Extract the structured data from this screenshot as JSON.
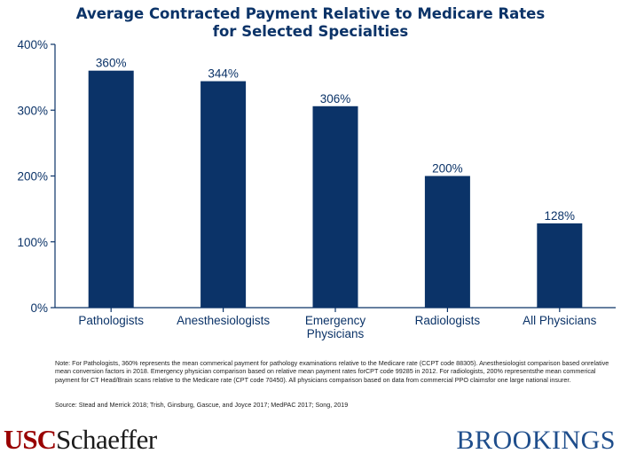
{
  "chart_data": {
    "type": "bar",
    "title_lines": [
      "Average Contracted Payment Relative to Medicare Rates",
      "for Selected Specialties"
    ],
    "categories": [
      [
        "Pathologists"
      ],
      [
        "Anesthesiologists"
      ],
      [
        "Emergency",
        "Physicians"
      ],
      [
        "Radiologists"
      ],
      [
        "All Physicians"
      ]
    ],
    "values": [
      360,
      344,
      306,
      200,
      128
    ],
    "data_labels": [
      "360%",
      "344%",
      "306%",
      "200%",
      "128%"
    ],
    "yticks": [
      0,
      100,
      200,
      300,
      400
    ],
    "ytick_labels": [
      "0%",
      "100%",
      "200%",
      "300%",
      "400%"
    ],
    "ylim": [
      0,
      400
    ],
    "bar_color": "#0b3368",
    "axis_color": "#0b3368",
    "grid": false,
    "legend": "none"
  },
  "footer": {
    "note": "Note: For Pathologists, 360% represents the mean commerical payment for pathology examinations relative to the Medicare rate (CCPT code 88305). Anesthesiologist comparison based onrelative mean conversion factors in 2018. Emergency physician comparison based on relative mean payment rates forCPT code 99285 in 2012. For radiologists, 200% representsthe mean commerical payment for CT Head/Brain scans relative to the Medicare rate (CPT code 70450). All physicians comparison based on data from commercial PPO claimsfor one large national insurer.",
    "source": "Source: Stead and Merrick 2018; Trish, Ginsburg, Gascue, and Joyce 2017; MedPAC 2017; Song, 2019"
  },
  "logos": {
    "usc_part1": "USC",
    "usc_part2": "Schaeffer",
    "brookings": "BROOKINGS"
  }
}
